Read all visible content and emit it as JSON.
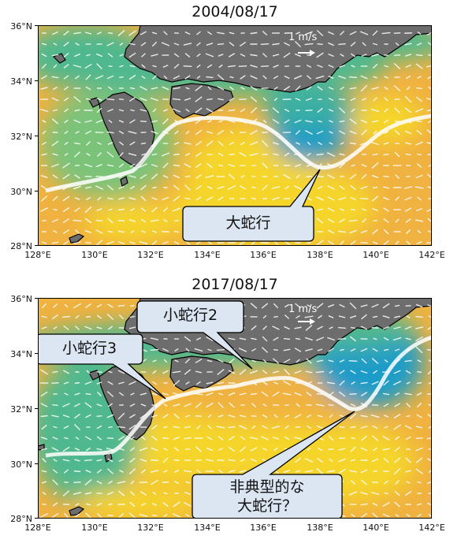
{
  "panels": [
    {
      "title": "2004/08/17",
      "scale_label": "1 m/s",
      "callouts": [
        {
          "lines": [
            "大蛇行"
          ]
        }
      ]
    },
    {
      "title": "2017/08/17",
      "scale_label": "1 m/s",
      "callouts": [
        {
          "lines": [
            "小蛇行2"
          ]
        },
        {
          "lines": [
            "小蛇行3"
          ]
        },
        {
          "lines": [
            "非典型的な",
            "大蛇行？"
          ]
        }
      ]
    }
  ],
  "axes": {
    "lat_ticks": [
      "36°N",
      "34°N",
      "32°N",
      "30°N",
      "28°N"
    ],
    "lon_ticks": [
      "128°E",
      "130°E",
      "132°E",
      "134°E",
      "136°E",
      "138°E",
      "140°E",
      "142°E"
    ]
  },
  "colors": {
    "land": "#6d6d6d",
    "warm": "#f5d52a",
    "orange": "#f0b240",
    "teal": "#4fb88f",
    "blue": "#1f9cc8",
    "callout_fill": "#dbe6f2",
    "arrow": "#ffffff"
  }
}
